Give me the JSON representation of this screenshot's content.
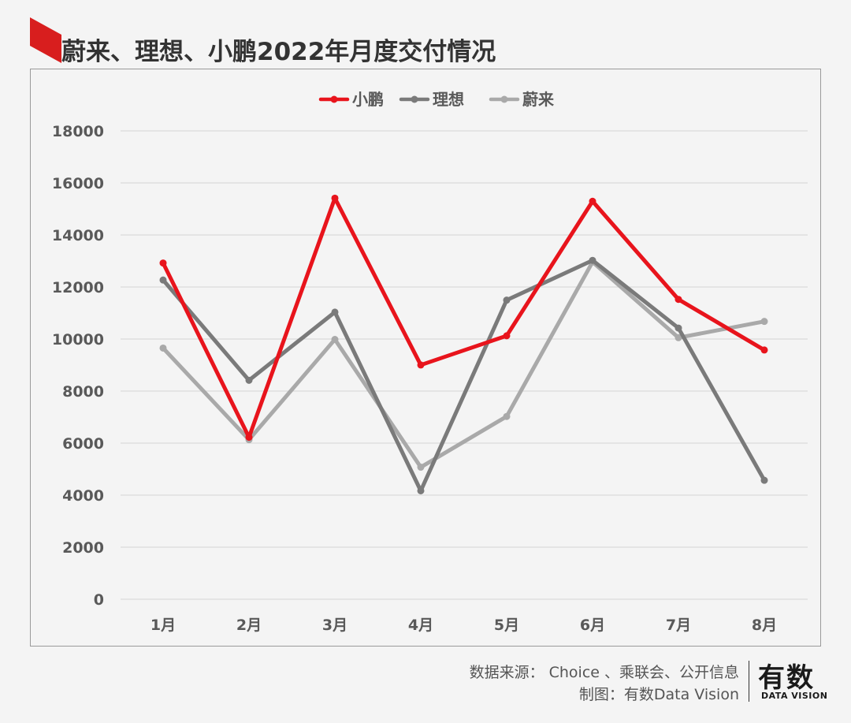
{
  "header": {
    "title": "蔚来、理想、小鹏2022年月度交付情况",
    "accent_color": "#d81e1e"
  },
  "chart_data": {
    "type": "line",
    "title": "蔚来、理想、小鹏2022年月度交付情况",
    "categories": [
      "1月",
      "2月",
      "3月",
      "4月",
      "5月",
      "6月",
      "7月",
      "8月"
    ],
    "yticks": [
      "0",
      "2000",
      "4000",
      "6000",
      "8000",
      "10000",
      "12000",
      "14000",
      "16000",
      "18000"
    ],
    "ylim": [
      0,
      18000
    ],
    "grid": true,
    "legend_position": "top-center",
    "series": [
      {
        "name": "小鹏",
        "color": "#e8141c",
        "values": [
          12922,
          6225,
          15414,
          9002,
          10125,
          15295,
          11524,
          9578
        ]
      },
      {
        "name": "理想",
        "color": "#7a7a7a",
        "values": [
          12268,
          8414,
          11034,
          4167,
          11496,
          13024,
          10422,
          4571
        ]
      },
      {
        "name": "蔚来",
        "color": "#a9a9a9",
        "values": [
          9652,
          6131,
          9985,
          5074,
          7024,
          12961,
          10052,
          10677
        ]
      }
    ]
  },
  "footer": {
    "source": "数据来源： Choice 、乘联会、公开信息",
    "made_by": "制图：有数Data Vision",
    "logo_main": "有数",
    "logo_sub": "DATA VISION"
  }
}
